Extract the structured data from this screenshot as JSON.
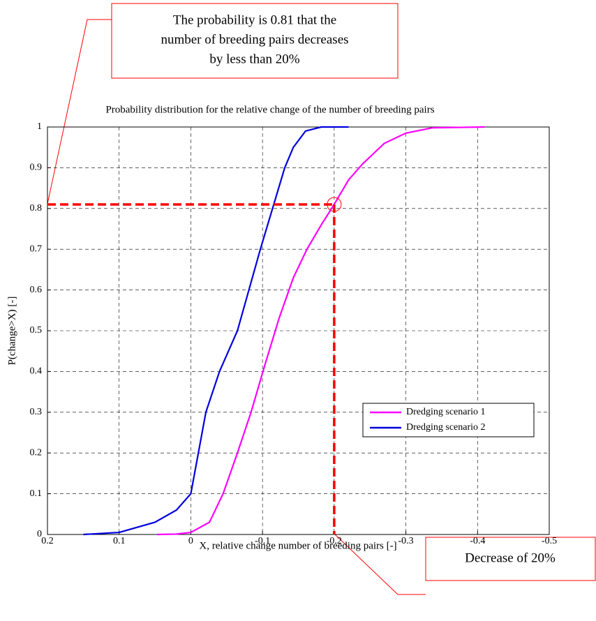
{
  "chart_data": {
    "type": "line",
    "title": "Probability distribution for the relative change of the number of breeding pairs",
    "xlabel": "X, relative change number of breeding pairs [-]",
    "ylabel": "P(change>X) [-]",
    "xlim": [
      0.2,
      -0.5
    ],
    "xticks": [
      0.2,
      0.1,
      0,
      -0.1,
      -0.2,
      -0.3,
      -0.4,
      -0.5
    ],
    "ylim": [
      0,
      1
    ],
    "yticks": [
      0,
      0.1,
      0.2,
      0.3,
      0.4,
      0.5,
      0.6,
      0.7,
      0.8,
      0.9,
      1
    ],
    "grid": true,
    "legend": "lower right",
    "series": [
      {
        "name": "Dredging scenario 1",
        "color": "#ff00ff",
        "x": [
          0.047,
          0.02,
          0,
          -0.026,
          -0.045,
          -0.065,
          -0.084,
          -0.104,
          -0.123,
          -0.143,
          -0.162,
          -0.182,
          -0.2,
          -0.22,
          -0.24,
          -0.27,
          -0.3,
          -0.337,
          -0.41
        ],
        "values": [
          0,
          0.001,
          0.005,
          0.03,
          0.1,
          0.2,
          0.3,
          0.42,
          0.53,
          0.63,
          0.7,
          0.76,
          0.81,
          0.87,
          0.91,
          0.96,
          0.985,
          0.998,
          1
        ]
      },
      {
        "name": "Dredging scenario 2",
        "color": "#0000dd",
        "x": [
          0.15,
          0.1,
          0.05,
          0.02,
          0,
          -0.021,
          -0.04,
          -0.065,
          -0.097,
          -0.114,
          -0.131,
          -0.143,
          -0.16,
          -0.182,
          -0.22
        ],
        "values": [
          0,
          0.005,
          0.03,
          0.06,
          0.1,
          0.3,
          0.4,
          0.5,
          0.7,
          0.8,
          0.9,
          0.95,
          0.99,
          1,
          1
        ]
      }
    ],
    "highlight": {
      "x": -0.2,
      "y": 0.81,
      "color": "#ff0000"
    },
    "annotations": [
      {
        "lines": [
          "The probability is 0.81 that the",
          "number of breeding pairs decreases",
          "by less than 20%"
        ]
      },
      {
        "lines": [
          "Decrease of 20%"
        ]
      }
    ]
  }
}
